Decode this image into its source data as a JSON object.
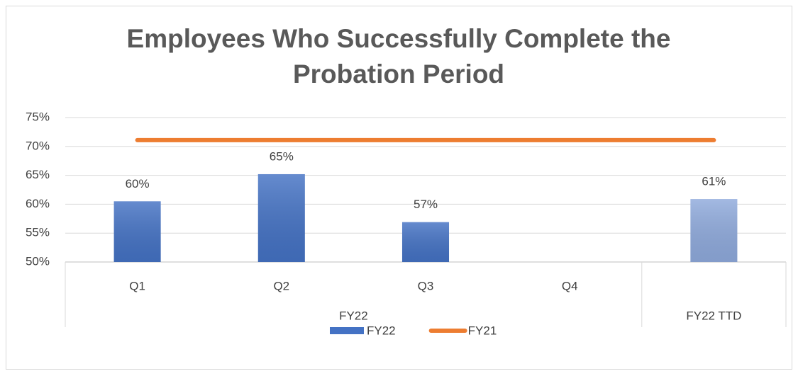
{
  "chart_data": {
    "type": "bar",
    "title": "Employees Who Successfully Complete the\nProbation Period",
    "categories": [
      "Q1",
      "Q2",
      "Q3",
      "Q4",
      null
    ],
    "groups": [
      "FY22",
      "FY22",
      "FY22",
      "FY22",
      "FY22 TTD"
    ],
    "series": [
      {
        "name": "FY22",
        "type": "bar",
        "color": "#4472c4",
        "point_colors": [
          "#4472c4",
          "#4472c4",
          "#4472c4",
          "#4472c4",
          "#8faadc"
        ],
        "values": [
          60.5,
          65.2,
          56.9,
          null,
          60.9
        ],
        "value_labels": [
          "60%",
          "65%",
          "57%",
          null,
          "61%"
        ]
      },
      {
        "name": "FY21",
        "type": "line",
        "color": "#ed7d31",
        "values": [
          71.1,
          71.1,
          71.1,
          71.1,
          71.1
        ]
      }
    ],
    "ylim": [
      50,
      75
    ],
    "yticks": [
      {
        "value": 50,
        "label": "50%"
      },
      {
        "value": 55,
        "label": "55%"
      },
      {
        "value": 60,
        "label": "60%"
      },
      {
        "value": 65,
        "label": "65%"
      },
      {
        "value": 70,
        "label": "70%"
      },
      {
        "value": 75,
        "label": "75%"
      }
    ],
    "grid": true,
    "legend": "bottom"
  }
}
